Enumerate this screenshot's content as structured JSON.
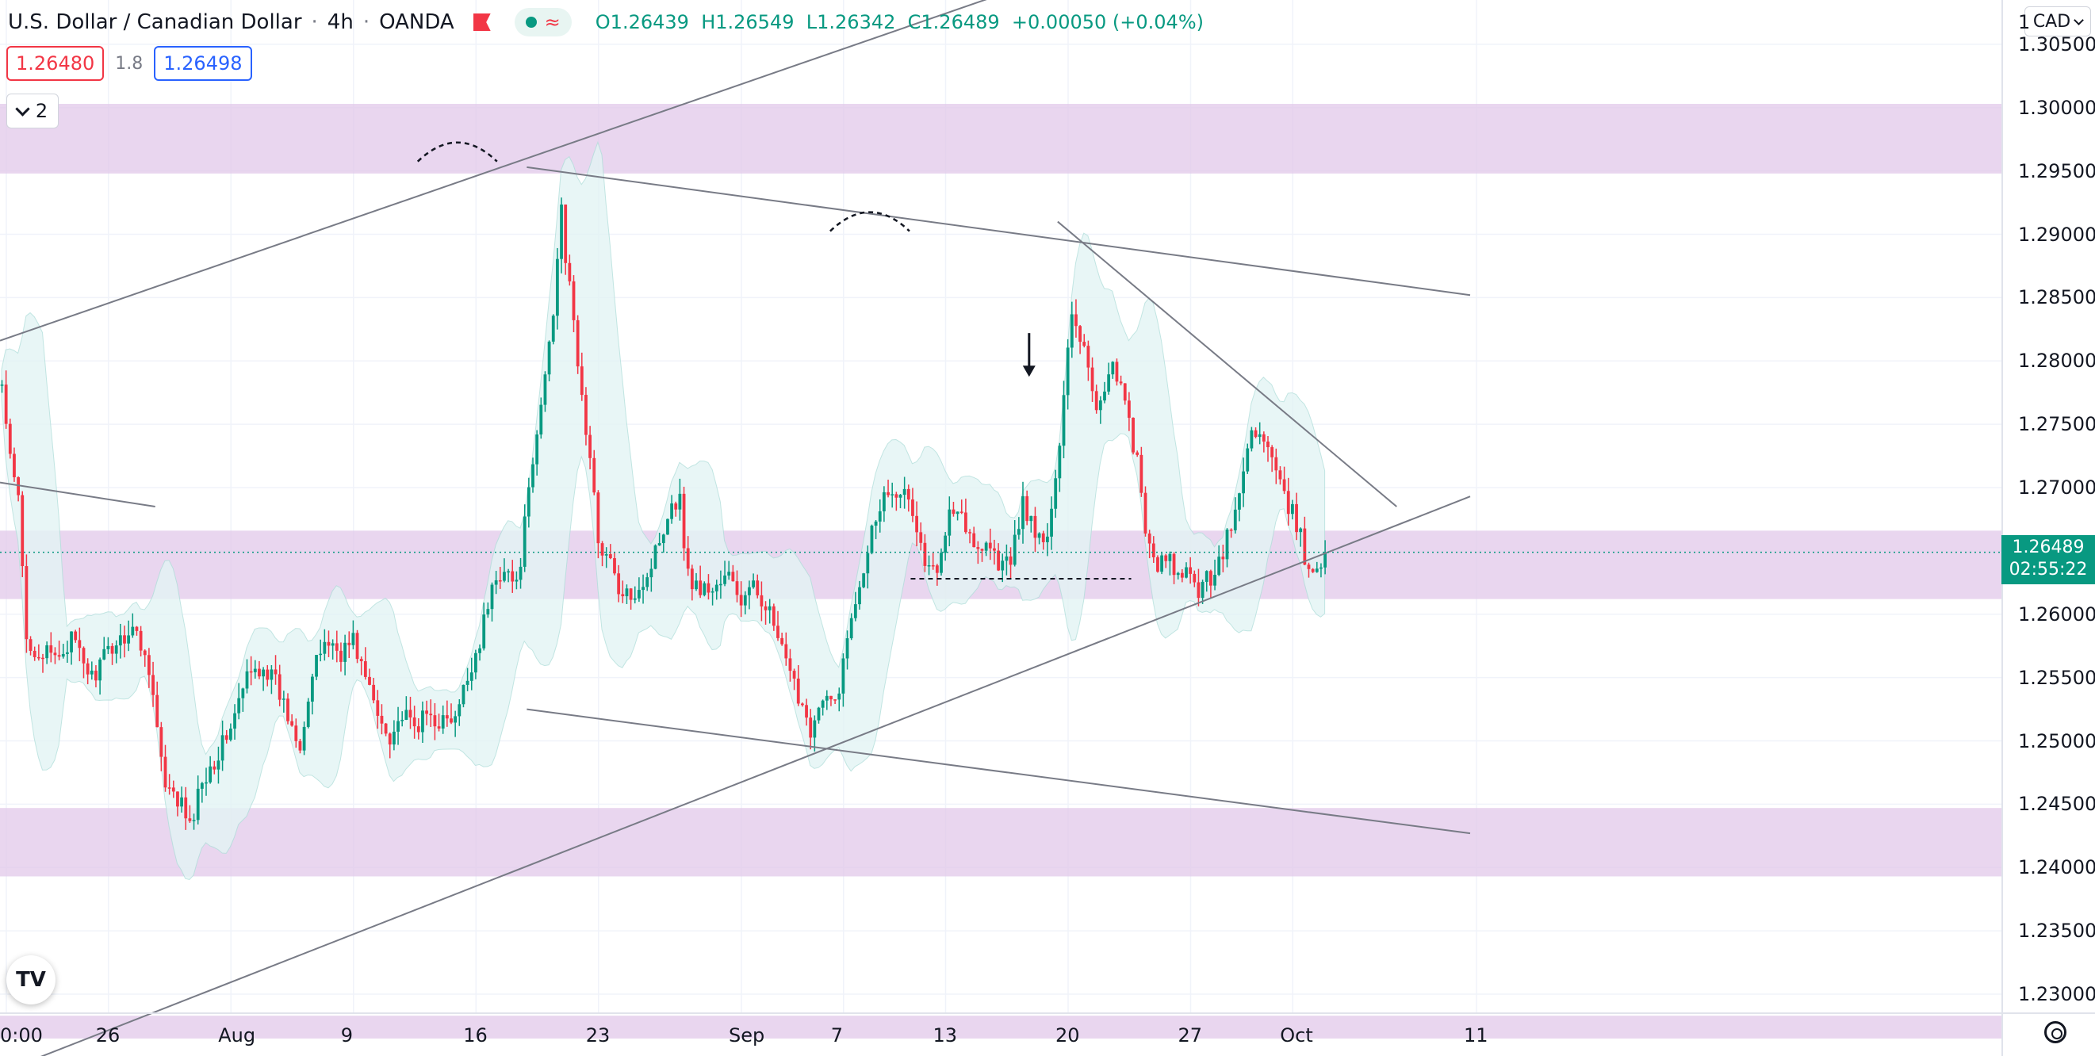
{
  "header": {
    "symbol": "U.S. Dollar / Canadian Dollar",
    "interval": "4h",
    "exchange": "OANDA",
    "ohlc": {
      "o_label": "O",
      "o": "1.26439",
      "h_label": "H",
      "h": "1.26549",
      "l_label": "L",
      "l": "1.26342",
      "c_label": "C",
      "c": "1.26489",
      "change": "+0.00050 (+0.04%)"
    }
  },
  "trade": {
    "sell": "1.26480",
    "spread": "1.8",
    "buy": "1.26498"
  },
  "indicators_collapsed_count": "2",
  "currency_button": "CAD",
  "last_price": {
    "price": "1.26489",
    "countdown": "02:55:22",
    "color": "#089981"
  },
  "colors": {
    "up": "#089981",
    "down": "#f23645",
    "zone": "#e1c8ea",
    "band": "#e3f4f4"
  },
  "chart_data": {
    "type": "candlestick",
    "y_ticks": [
      "1.30500",
      "1.30000",
      "1.29500",
      "1.29000",
      "1.28500",
      "1.28000",
      "1.27500",
      "1.27000",
      "1.26500",
      "1.26000",
      "1.25500",
      "1.25000",
      "1.24500",
      "1.24000",
      "1.23500",
      "1.23000"
    ],
    "y_partial_top": "1",
    "x_ticks": [
      {
        "label": "0:00",
        "bar": 0
      },
      {
        "label": "26",
        "bar": 25
      },
      {
        "label": "Aug",
        "bar": 55
      },
      {
        "label": "9",
        "bar": 85
      },
      {
        "label": "16",
        "bar": 115
      },
      {
        "label": "23",
        "bar": 145
      },
      {
        "label": "Sep",
        "bar": 180
      },
      {
        "label": "7",
        "bar": 205
      },
      {
        "label": "13",
        "bar": 230
      },
      {
        "label": "20",
        "bar": 260
      },
      {
        "label": "27",
        "bar": 290
      },
      {
        "label": "Oct",
        "bar": 315
      },
      {
        "label": "11",
        "bar": 360
      }
    ],
    "bars_per_day": 5,
    "ylim": [
      1.2285,
      1.3085
    ],
    "zones": [
      [
        1.2948,
        1.3003
      ],
      [
        1.2612,
        1.2666
      ],
      [
        1.2393,
        1.2447
      ],
      [
        1.2265,
        1.2283
      ]
    ],
    "current_price": 1.26489,
    "support_level": 1.2628,
    "trend_lines": [
      {
        "from": [
          0,
          1.2816
        ],
        "to": [
          259,
          1.3105
        ]
      },
      {
        "from": [
          0,
          1.2238
        ],
        "to": [
          360,
          1.2693
        ]
      },
      {
        "from": [
          129,
          1.2953
        ],
        "to": [
          360,
          1.2852
        ]
      },
      {
        "from": [
          129,
          1.2525
        ],
        "to": [
          360,
          1.2427
        ]
      },
      {
        "from": [
          259,
          1.291
        ],
        "to": [
          342,
          1.2685
        ]
      },
      {
        "from": [
          0,
          1.2704
        ],
        "to": [
          38,
          1.2685
        ]
      }
    ],
    "price_path": [
      [
        0,
        1.278
      ],
      [
        2,
        1.272
      ],
      [
        4,
        1.269
      ],
      [
        6,
        1.258
      ],
      [
        9,
        1.257
      ],
      [
        13,
        1.2565
      ],
      [
        17,
        1.258
      ],
      [
        22,
        1.255
      ],
      [
        27,
        1.2575
      ],
      [
        32,
        1.259
      ],
      [
        36,
        1.256
      ],
      [
        40,
        1.246
      ],
      [
        44,
        1.245
      ],
      [
        46,
        1.243
      ],
      [
        49,
        1.247
      ],
      [
        53,
        1.249
      ],
      [
        57,
        1.252
      ],
      [
        60,
        1.255
      ],
      [
        64,
        1.256
      ],
      [
        67,
        1.2545
      ],
      [
        70,
        1.252
      ],
      [
        73,
        1.25
      ],
      [
        76,
        1.255
      ],
      [
        79,
        1.258
      ],
      [
        83,
        1.257
      ],
      [
        86,
        1.258
      ],
      [
        89,
        1.255
      ],
      [
        92,
        1.252
      ],
      [
        95,
        1.2505
      ],
      [
        98,
        1.252
      ],
      [
        101,
        1.251
      ],
      [
        104,
        1.252
      ],
      [
        108,
        1.2515
      ],
      [
        111,
        1.2515
      ],
      [
        114,
        1.255
      ],
      [
        117,
        1.258
      ],
      [
        120,
        1.262
      ],
      [
        123,
        1.264
      ],
      [
        126,
        1.262
      ],
      [
        128,
        1.267
      ],
      [
        131,
        1.274
      ],
      [
        133,
        1.279
      ],
      [
        135,
        1.284
      ],
      [
        137,
        1.293
      ],
      [
        138,
        1.288
      ],
      [
        140,
        1.283
      ],
      [
        142,
        1.277
      ],
      [
        144,
        1.272
      ],
      [
        146,
        1.266
      ],
      [
        149,
        1.264
      ],
      [
        152,
        1.261
      ],
      [
        155,
        1.262
      ],
      [
        158,
        1.263
      ],
      [
        161,
        1.266
      ],
      [
        164,
        1.269
      ],
      [
        166,
        1.269
      ],
      [
        168,
        1.263
      ],
      [
        171,
        1.262
      ],
      [
        174,
        1.262
      ],
      [
        178,
        1.263
      ],
      [
        181,
        1.261
      ],
      [
        184,
        1.262
      ],
      [
        187,
        1.261
      ],
      [
        190,
        1.258
      ],
      [
        193,
        1.255
      ],
      [
        196,
        1.253
      ],
      [
        198,
        1.251
      ],
      [
        201,
        1.253
      ],
      [
        204,
        1.253
      ],
      [
        206,
        1.256
      ],
      [
        208,
        1.26
      ],
      [
        211,
        1.264
      ],
      [
        214,
        1.268
      ],
      [
        217,
        1.27
      ],
      [
        220,
        1.27
      ],
      [
        223,
        1.268
      ],
      [
        226,
        1.264
      ],
      [
        229,
        1.263
      ],
      [
        232,
        1.269
      ],
      [
        235,
        1.268
      ],
      [
        238,
        1.265
      ],
      [
        241,
        1.266
      ],
      [
        244,
        1.264
      ],
      [
        247,
        1.264
      ],
      [
        250,
        1.269
      ],
      [
        253,
        1.266
      ],
      [
        256,
        1.266
      ],
      [
        258,
        1.27
      ],
      [
        260,
        1.278
      ],
      [
        262,
        1.284
      ],
      [
        264,
        1.282
      ],
      [
        266,
        1.28
      ],
      [
        268,
        1.276
      ],
      [
        270,
        1.278
      ],
      [
        272,
        1.28
      ],
      [
        274,
        1.278
      ],
      [
        276,
        1.275
      ],
      [
        278,
        1.272
      ],
      [
        280,
        1.266
      ],
      [
        283,
        1.264
      ],
      [
        286,
        1.264
      ],
      [
        288,
        1.263
      ],
      [
        290,
        1.263
      ],
      [
        293,
        1.262
      ],
      [
        296,
        1.263
      ],
      [
        299,
        1.265
      ],
      [
        302,
        1.268
      ],
      [
        304,
        1.271
      ],
      [
        306,
        1.275
      ],
      [
        308,
        1.274
      ],
      [
        310,
        1.273
      ],
      [
        312,
        1.271
      ],
      [
        314,
        1.269
      ],
      [
        316,
        1.268
      ],
      [
        318,
        1.266
      ],
      [
        320,
        1.263
      ],
      [
        322,
        1.264
      ],
      [
        324,
        1.2649
      ]
    ]
  }
}
